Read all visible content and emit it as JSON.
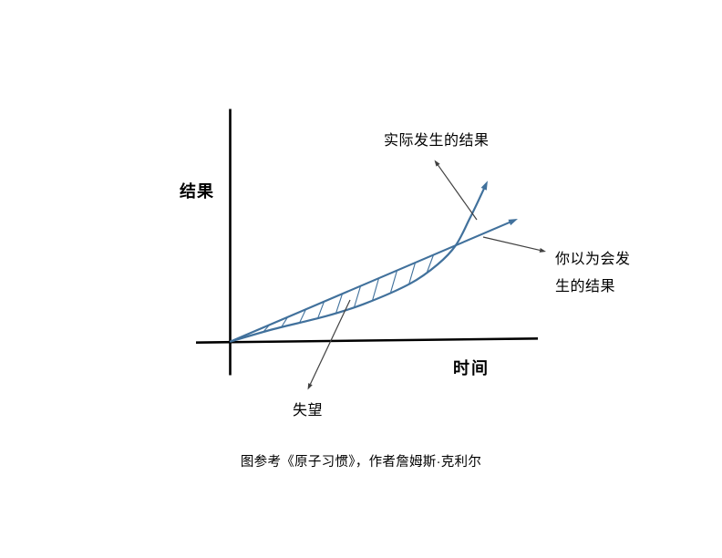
{
  "page": {
    "background": "#ffffff"
  },
  "chart_data": {
    "type": "line",
    "title": "",
    "xlabel": "时间",
    "ylabel": "结果",
    "grid": false,
    "axes_numeric": false,
    "x_range_norm": [
      0,
      1
    ],
    "y_range_norm": [
      0,
      1.3
    ],
    "legend_position": "none (labels attached via thin arrows)",
    "series": [
      {
        "name": "实际发生的结果",
        "shape": "exponential-growth",
        "color": "#41719C",
        "arrow_end": true,
        "points_norm": [
          [
            0,
            0
          ],
          [
            0.149,
            0.1
          ],
          [
            0.33,
            0.204
          ],
          [
            0.467,
            0.307
          ],
          [
            0.625,
            0.47
          ],
          [
            0.721,
            0.626
          ],
          [
            0.784,
            0.781
          ],
          [
            0.832,
            0.996
          ],
          [
            0.86,
            1.13
          ],
          [
            0.883,
            1.245
          ]
        ]
      },
      {
        "name": "你以为会发生的结果",
        "shape": "linear",
        "color": "#41719C",
        "arrow_end": true,
        "points_norm": [
          [
            0,
            0
          ],
          [
            1,
            0.996
          ]
        ]
      }
    ],
    "annotations": [
      {
        "text": "失望",
        "target": "hatched gap between expected line and actual curve"
      },
      {
        "text": "实际发生的结果",
        "target": "exponential curve"
      },
      {
        "text": "你以为会发生的结果",
        "target": "linear line"
      }
    ],
    "hatched_region": {
      "between": "linear expectation line and exponential actual curve",
      "from_norm_x": 0.0,
      "to_norm_x": 0.784,
      "hatch_count": 10
    }
  },
  "labels": {
    "y_axis": "结果",
    "x_axis": "时间",
    "actual": "实际发生的结果",
    "expected": "你以为会发生的结果",
    "disappointment": "失望"
  },
  "caption": {
    "text": "图参考《原子习惯》，作者詹姆斯·克利尔"
  },
  "colors": {
    "curve": "#41719C",
    "axis": "#000000",
    "annotation_arrow": "#404040",
    "text": "#000000",
    "background": "#ffffff"
  }
}
